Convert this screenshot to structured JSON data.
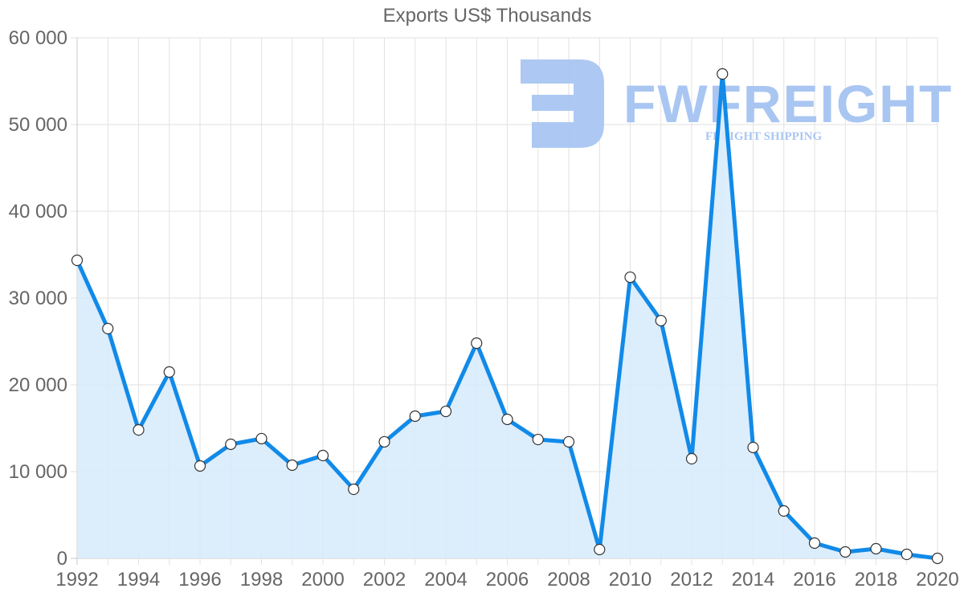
{
  "chart_data": {
    "type": "area",
    "title": "Exports US$ Thousands",
    "xlabel": "",
    "ylabel": "",
    "categories": [
      1992,
      1993,
      1994,
      1995,
      1996,
      1997,
      1998,
      1999,
      2000,
      2001,
      2002,
      2003,
      2004,
      2005,
      2006,
      2007,
      2008,
      2009,
      2010,
      2011,
      2012,
      2013,
      2014,
      2015,
      2016,
      2017,
      2018,
      2019,
      2020
    ],
    "series": [
      {
        "name": "Exports US$ Thousands",
        "values": [
          34350,
          26480,
          14800,
          21480,
          10650,
          13150,
          13800,
          10740,
          11850,
          7960,
          13430,
          16390,
          16940,
          24800,
          16020,
          13700,
          13430,
          1020,
          32400,
          27400,
          11480,
          55830,
          12780,
          5460,
          1760,
          740,
          1110,
          460,
          0
        ]
      }
    ],
    "ylim": [
      0,
      60000
    ],
    "xlim": [
      1992,
      2020
    ],
    "y_ticks": [
      0,
      10000,
      20000,
      30000,
      40000,
      50000,
      60000
    ],
    "y_tick_labels": [
      "0",
      "10 000",
      "20 000",
      "30 000",
      "40 000",
      "50 000",
      "60 000"
    ],
    "x_tick_labels": [
      "1992",
      "1994",
      "1996",
      "1998",
      "2000",
      "2002",
      "2004",
      "2006",
      "2008",
      "2010",
      "2012",
      "2014",
      "2016",
      "2018",
      "2020"
    ],
    "grid": true,
    "legend": "none",
    "colors": {
      "line": "#118ae8",
      "fill": "#d8ebfc",
      "point_fill": "#ffffff",
      "point_stroke": "#333333",
      "grid": "#e2e2e2"
    }
  },
  "watermark": {
    "brand": "FWFREIGHT",
    "tagline": "FREIGHT SHIPPING",
    "color": "#a9c6f2"
  }
}
